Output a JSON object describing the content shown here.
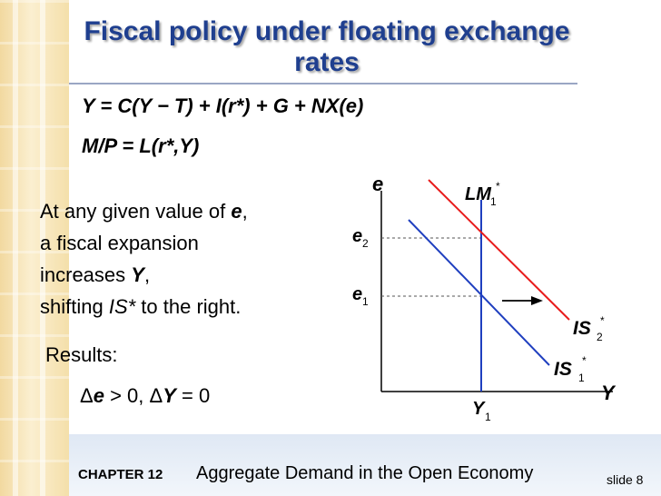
{
  "title_line1": "Fiscal policy under floating exchange",
  "title_line2": "rates",
  "equations": {
    "goods_market": "Y = C(Y − T) + I(r*) + G + NX(e)",
    "money_market": "M/P = L(r*,Y)"
  },
  "note": {
    "line1_prefix": "At any given value of ",
    "line1_var": "e",
    "line1_suffix": ",",
    "line2": "a fiscal expansion",
    "line3_prefix": "increases ",
    "line3_var": "Y",
    "line3_suffix": ",",
    "line4_prefix": "shifting ",
    "line4_italic": "IS*",
    "line4_suffix": " to the right."
  },
  "results_label": "Results:",
  "results": {
    "delta_symbol": "Δ",
    "e_var": "e",
    "e_change": " > 0,  ",
    "y_var": "Y",
    "y_change": " = 0"
  },
  "graph": {
    "y_axis_label": "e",
    "x_axis_label": "Y",
    "lm_label": "LM",
    "lm_sub": "1",
    "is2_label": "IS",
    "is2_sub": "2",
    "is1_label": "IS",
    "is1_sub": "1",
    "star": "*",
    "e1_label": "e",
    "e1_sub": "1",
    "e2_label": "e",
    "e2_sub": "2",
    "y1_label": "Y",
    "y1_sub": "1",
    "colors": {
      "is1": "#1f3fbf",
      "is2": "#e81c1c",
      "lm": "#1f3fbf",
      "axis": "#000000"
    }
  },
  "footer": {
    "chapter": "CHAPTER 12",
    "title": "Aggregate Demand in the Open Economy",
    "slide": "slide 8"
  }
}
